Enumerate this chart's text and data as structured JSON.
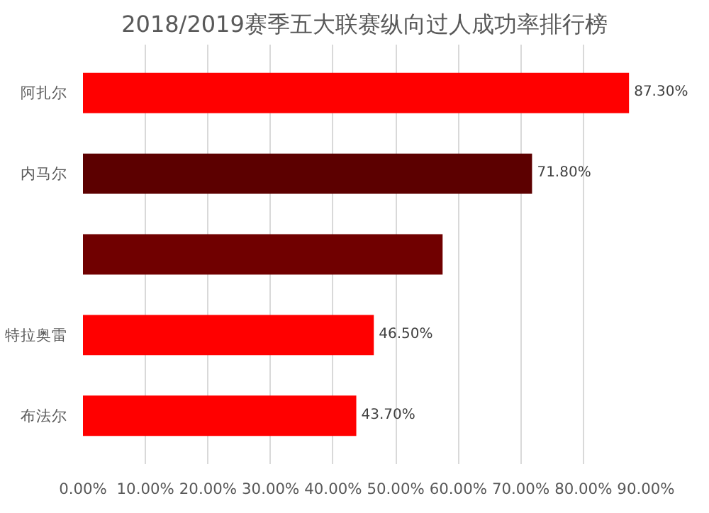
{
  "chart_data": {
    "type": "bar",
    "orientation": "horizontal",
    "title": "2018/2019赛季五大联赛纵向过人成功率排行榜",
    "categories": [
      "阿扎尔",
      "内马尔",
      null,
      "特拉奥雷",
      "布法尔"
    ],
    "values": [
      87.3,
      71.8,
      57.5,
      46.5,
      43.7
    ],
    "value_labels": [
      "87.30%",
      "71.80%",
      null,
      "46.50%",
      "43.70%"
    ],
    "colors": [
      "#ff0000",
      "#5c0000",
      "#700000",
      "#ff0000",
      "#ff0000"
    ],
    "xlim": [
      0,
      90
    ],
    "xticks": [
      {
        "value": 0,
        "label": "0.00%"
      },
      {
        "value": 10,
        "label": "10.00%"
      },
      {
        "value": 20,
        "label": "20.00%"
      },
      {
        "value": 30,
        "label": "30.00%"
      },
      {
        "value": 40,
        "label": "40.00%"
      },
      {
        "value": 50,
        "label": "50.00%"
      },
      {
        "value": 60,
        "label": "60.00%"
      },
      {
        "value": 70,
        "label": "70.00%"
      },
      {
        "value": 80,
        "label": "80.00%"
      },
      {
        "value": 90,
        "label": "90.00%"
      }
    ],
    "grid": "x"
  }
}
